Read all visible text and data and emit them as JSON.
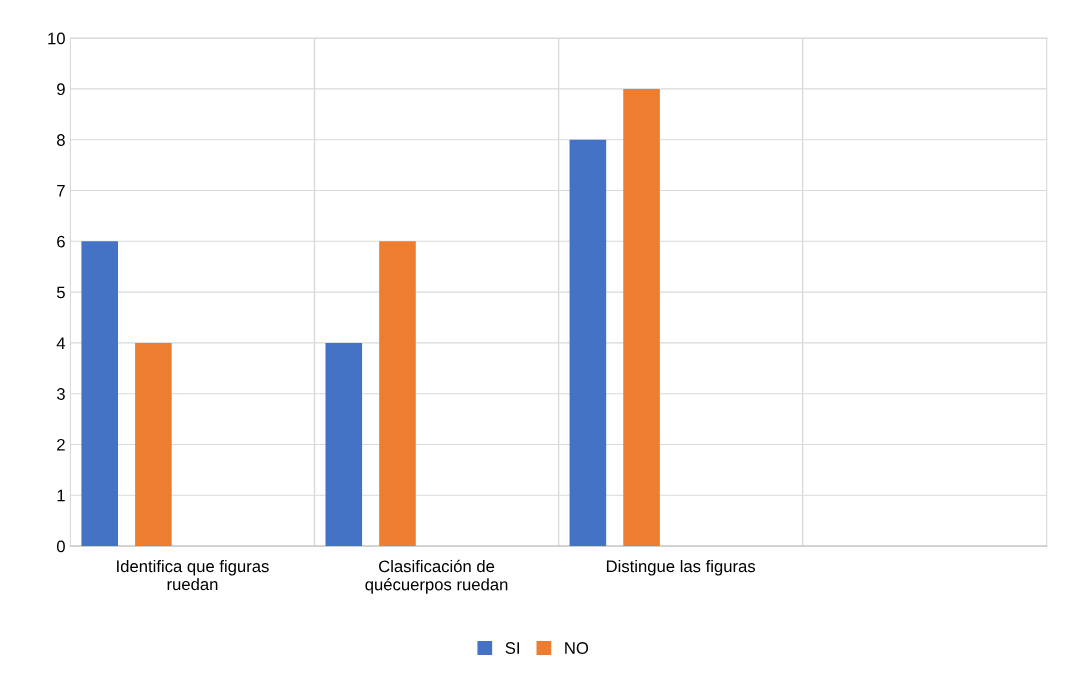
{
  "chart_data": {
    "type": "bar",
    "categories": [
      "Identifica que figuras ruedan",
      "Clasificación de quécuerpos ruedan",
      "Distingue las figuras",
      null
    ],
    "series": [
      {
        "name": "SI",
        "color": "#4472c4",
        "values": [
          6,
          4,
          8,
          null
        ]
      },
      {
        "name": "NO",
        "color": "#ed7d31",
        "values": [
          4,
          6,
          9,
          null
        ]
      }
    ],
    "ylim": [
      0,
      10
    ],
    "yticks": [
      0,
      1,
      2,
      3,
      4,
      5,
      6,
      7,
      8,
      9,
      10
    ],
    "grid": true,
    "legend": "bottom"
  }
}
